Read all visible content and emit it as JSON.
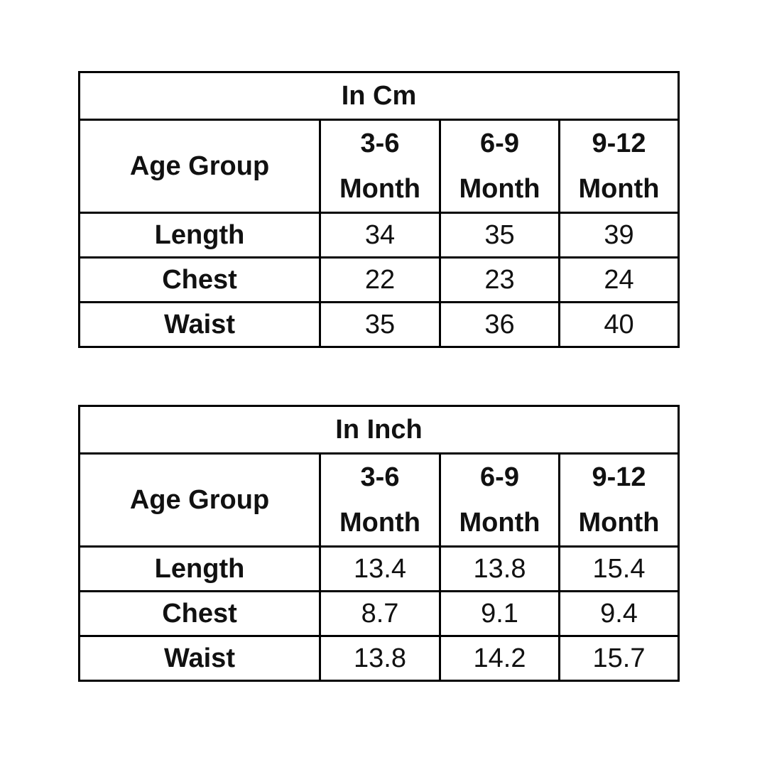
{
  "tables": [
    {
      "title": "In Cm",
      "header_label": "Age Group",
      "columns": [
        {
          "range": "3-6",
          "unit": "Month"
        },
        {
          "range": "6-9",
          "unit": "Month"
        },
        {
          "range": "9-12",
          "unit": "Month"
        }
      ],
      "rows": [
        {
          "label": "Length",
          "values": [
            "34",
            "35",
            "39"
          ]
        },
        {
          "label": "Chest",
          "values": [
            "22",
            "23",
            "24"
          ]
        },
        {
          "label": "Waist",
          "values": [
            "35",
            "36",
            "40"
          ]
        }
      ]
    },
    {
      "title": "In Inch",
      "header_label": "Age Group",
      "columns": [
        {
          "range": "3-6",
          "unit": "Month"
        },
        {
          "range": "6-9",
          "unit": "Month"
        },
        {
          "range": "9-12",
          "unit": "Month"
        }
      ],
      "rows": [
        {
          "label": "Length",
          "values": [
            "13.4",
            "13.8",
            "15.4"
          ]
        },
        {
          "label": "Chest",
          "values": [
            "8.7",
            "9.1",
            "9.4"
          ]
        },
        {
          "label": "Waist",
          "values": [
            "13.8",
            "14.2",
            "15.7"
          ]
        }
      ]
    }
  ]
}
